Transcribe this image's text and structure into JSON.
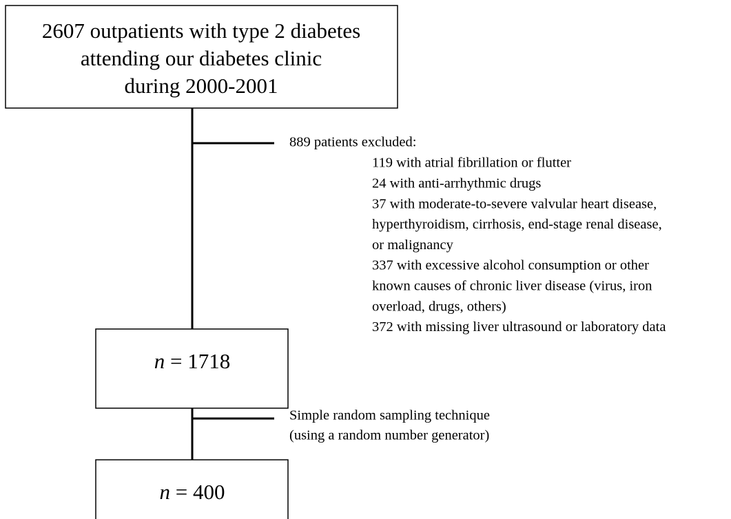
{
  "nodes": [
    {
      "lines": [
        "2607 outpatients with type 2 diabetes",
        "attending our diabetes clinic",
        "during 2000-2001"
      ]
    },
    {
      "label": [
        "n",
        "= 1718"
      ]
    },
    {
      "label": [
        "n",
        "= 400"
      ]
    }
  ],
  "exclusions": {
    "heading": "889 patients excluded:",
    "lines": [
      "119 with atrial fibrillation or flutter",
      "24 with anti-arrhythmic drugs",
      "37 with moderate-to-severe valvular heart disease,",
      "hyperthyroidism, cirrhosis, end-stage renal disease,",
      "or malignancy",
      "337 with excessive alcohol consumption or other",
      "known causes of chronic liver disease (virus, iron",
      "overload, drugs, others)",
      "372 with missing liver ultrasound or laboratory data"
    ]
  },
  "sampling": {
    "lines": [
      "Simple random sampling technique",
      "(using a random number generator)"
    ]
  }
}
